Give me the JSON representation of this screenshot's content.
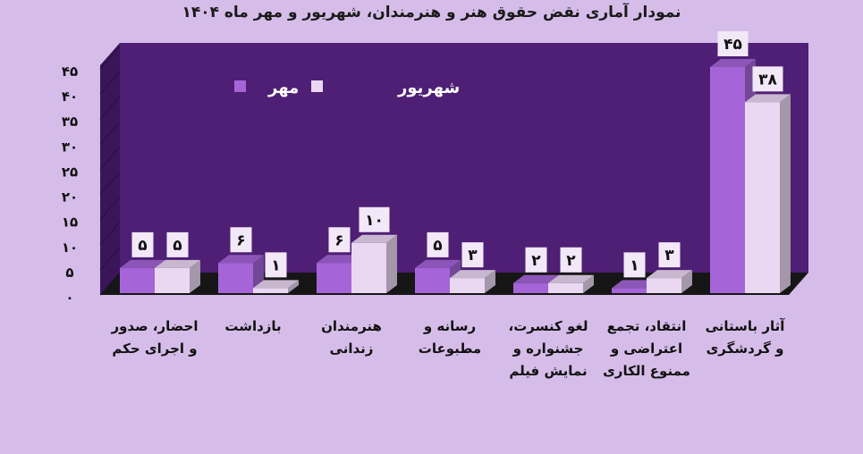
{
  "chart_data": {
    "type": "bar",
    "title": "نمودار آماری نقض حقوق هنر و هنرمندان، شهریور و مهر ماه ۱۴۰۴",
    "categories": [
      [
        "احضار، صدور",
        "و اجرای حکم"
      ],
      [
        "بازداشت"
      ],
      [
        "هنرمندان",
        "زندانی"
      ],
      [
        "رسانه و",
        "مطبوعات"
      ],
      [
        "لغو کنسرت،",
        "جشنواره و",
        "نمایش فیلم"
      ],
      [
        "انتقاد، تجمع",
        "اعتراضی و",
        "ممنوع الکاری"
      ],
      [
        "آثار باستانی",
        "و گردشگری"
      ]
    ],
    "series": [
      {
        "name": "مهر",
        "values": [
          5,
          6,
          6,
          5,
          2,
          1,
          45
        ],
        "labels": [
          "۵",
          "۶",
          "۶",
          "۵",
          "۲",
          "۱",
          "۴۵"
        ],
        "color": "#a565d8"
      },
      {
        "name": "شهریور",
        "values": [
          5,
          1,
          10,
          3,
          2,
          3,
          38
        ],
        "labels": [
          "۵",
          "۱",
          "۱۰",
          "۳",
          "۲",
          "۳",
          "۳۸"
        ],
        "color": "#ead8f3"
      }
    ],
    "ylim": [
      0,
      45
    ],
    "yticks": [
      0,
      5,
      10,
      15,
      20,
      25,
      30,
      35,
      40,
      45
    ],
    "ytick_labels": [
      "۰",
      "۵",
      "۱۰",
      "۱۵",
      "۲۰",
      "۲۵",
      "۳۰",
      "۳۵",
      "۴۰",
      "۴۵"
    ],
    "legend_position": "top-left",
    "grid": false,
    "colors": {
      "background": "#d6bde9",
      "wall": "#4e1f75",
      "wall_side": "#3a1659",
      "floor": "#161616"
    }
  }
}
